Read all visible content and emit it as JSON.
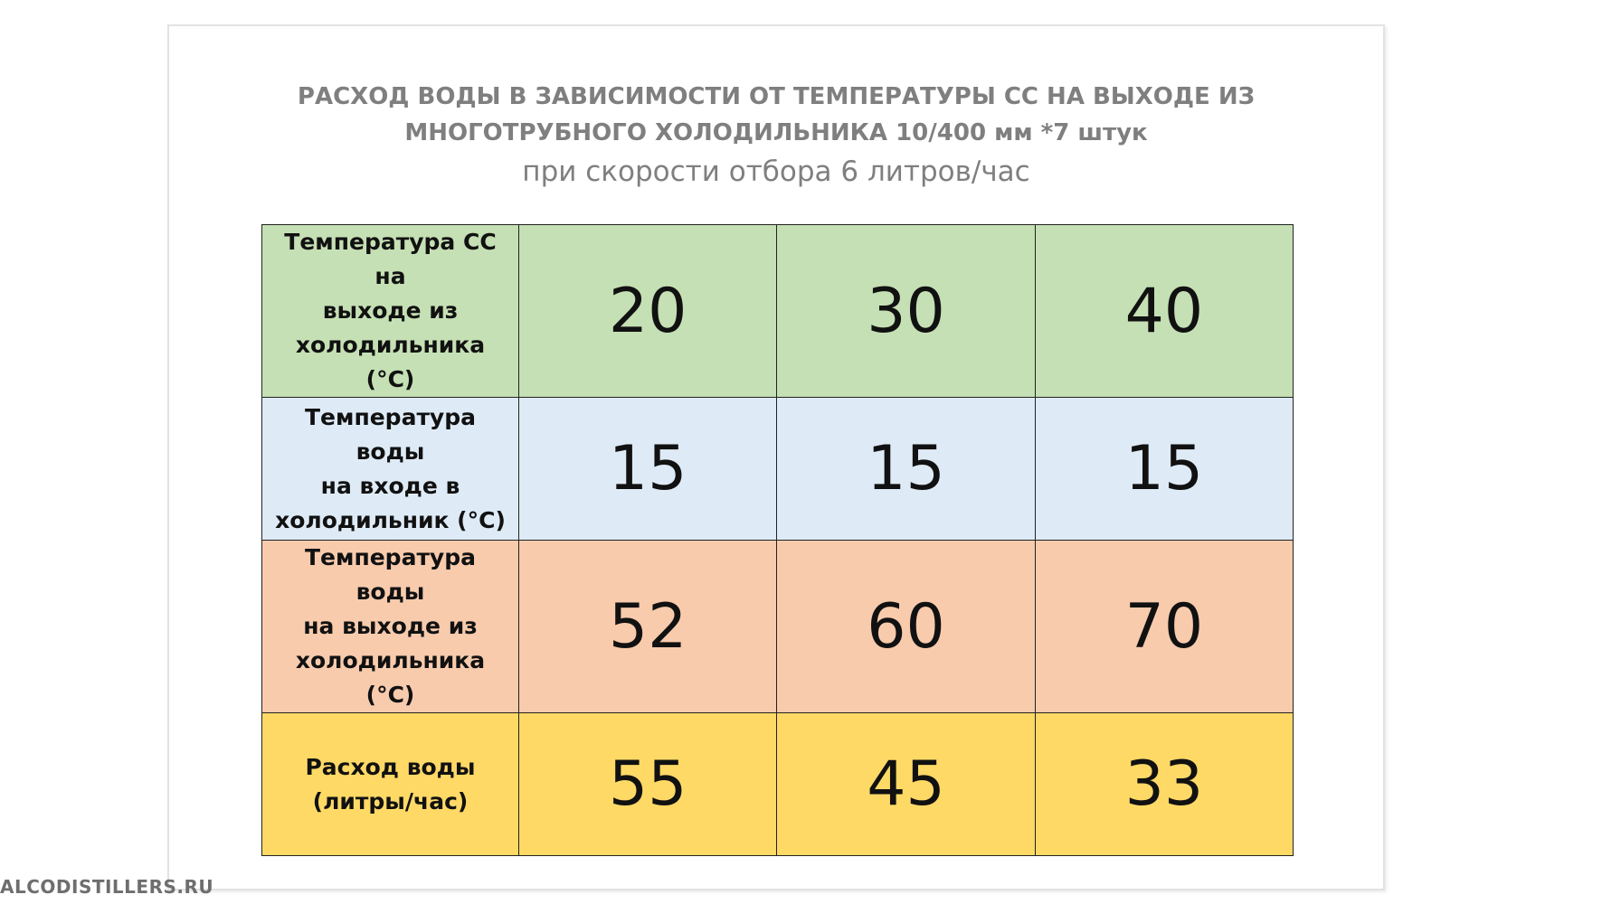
{
  "title_line1": "РАСХОД ВОДЫ В ЗАВИСИМОСТИ ОТ ТЕМПЕРАТУРЫ СС НА ВЫХОДЕ ИЗ",
  "title_line2": "МНОГОТРУБНОГО ХОЛОДИЛЬНИКА 10/400 мм *7 штук",
  "subtitle": "при скорости отбора 6 литров/час",
  "table": {
    "rows": [
      {
        "label_lines": [
          "Температура СС на",
          "выходе из",
          "холодильника (°С)"
        ],
        "values": [
          "20",
          "30",
          "40"
        ],
        "color": "#c5e0b4"
      },
      {
        "label_lines": [
          "Температура воды",
          "на входе в",
          "холодильник (°С)"
        ],
        "values": [
          "15",
          "15",
          "15"
        ],
        "color": "#deebf7"
      },
      {
        "label_lines": [
          "Температура воды",
          "на выходе из",
          "холодильника (°С)"
        ],
        "values": [
          "52",
          "60",
          "70"
        ],
        "color": "#f8cbad"
      },
      {
        "label_lines": [
          "Расход воды",
          "(литры/час)"
        ],
        "values": [
          "55",
          "45",
          "33"
        ],
        "color": "#ffd966"
      }
    ]
  },
  "watermark": "ALCODISTILLERS.RU"
}
